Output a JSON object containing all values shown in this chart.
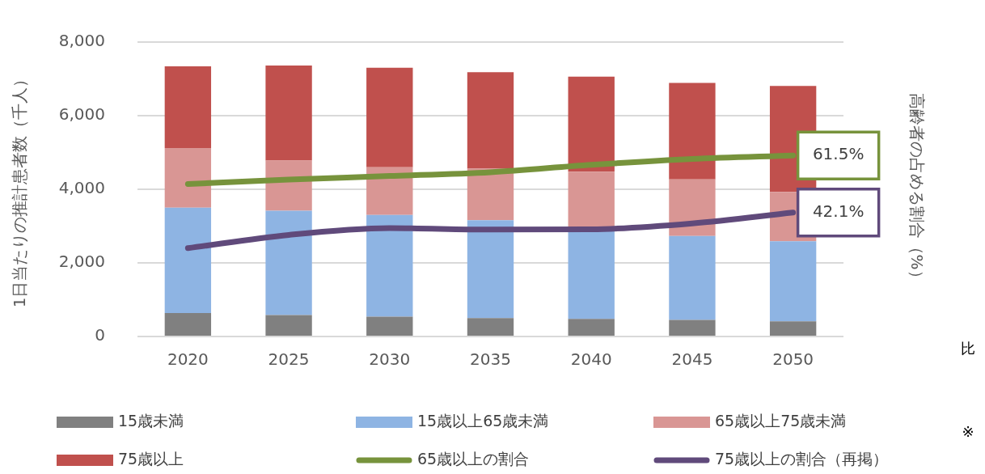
{
  "chart_data": {
    "type": "bar",
    "stacked": true,
    "ylabel": "1日当たりの推計患者数（千人）",
    "y2label": "高齢者の占める割合（%）",
    "categories": [
      "2020",
      "2025",
      "2030",
      "2035",
      "2040",
      "2045",
      "2050"
    ],
    "ylim": [
      0,
      8000
    ],
    "yticks": [
      {
        "value": 0,
        "label": "0"
      },
      {
        "value": 2000,
        "label": "2,000"
      },
      {
        "value": 4000,
        "label": "4,000"
      },
      {
        "value": 6000,
        "label": "6,000"
      },
      {
        "value": 8000,
        "label": "8,000"
      }
    ],
    "y2lim": [
      0,
      100
    ],
    "grid": "y",
    "legend": "bottom",
    "series": [
      {
        "name": "15歳未満",
        "color": "#808080",
        "values": [
          640,
          580,
          540,
          500,
          480,
          450,
          410
        ]
      },
      {
        "name": "15歳以上65歳未満",
        "color": "#8eb4e3",
        "values": [
          2860,
          2840,
          2760,
          2660,
          2390,
          2280,
          2180
        ]
      },
      {
        "name": "65歳以上75歳未満",
        "color": "#d99694",
        "values": [
          1620,
          1360,
          1300,
          1400,
          1610,
          1540,
          1340
        ]
      },
      {
        "name": "75歳以上",
        "color": "#c0504d",
        "values": [
          2220,
          2580,
          2700,
          2620,
          2580,
          2620,
          2880
        ]
      },
      {
        "name": "65歳以上の割合",
        "type": "line",
        "axis": "y2",
        "color": "#77933c",
        "values": [
          51.8,
          53.3,
          54.5,
          55.8,
          58.3,
          60.3,
          61.5
        ],
        "value_labels": [
          null,
          null,
          null,
          null,
          null,
          null,
          "61.5%"
        ]
      },
      {
        "name": "75歳以上の割合（再掲）",
        "type": "line",
        "axis": "y2",
        "color": "#604a7b",
        "values": [
          30.0,
          34.5,
          36.8,
          36.3,
          36.4,
          38.4,
          42.1
        ],
        "value_labels": [
          null,
          null,
          null,
          null,
          null,
          null,
          "42.1%"
        ]
      }
    ],
    "annotations": [
      "比",
      "※"
    ]
  }
}
